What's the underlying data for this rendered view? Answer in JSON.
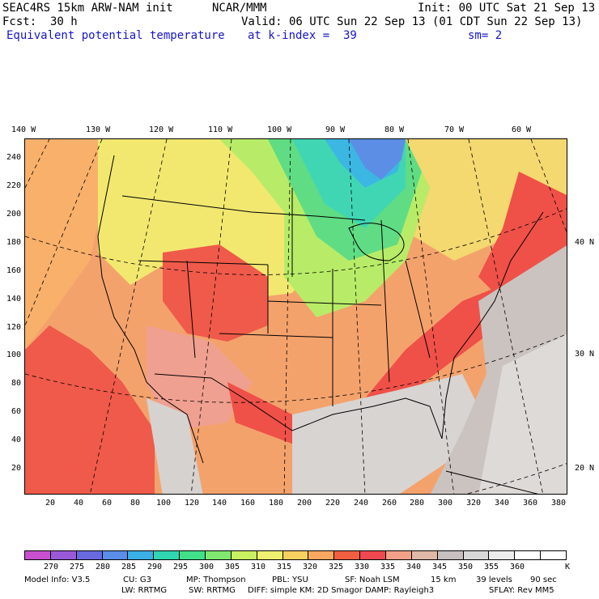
{
  "header": {
    "model": "SEAC4RS 15km ARW-NAM init",
    "org": "NCAR/MMM",
    "init": "Init: 00 UTC Sat 21 Sep 13",
    "fcst_label": "Fcst:",
    "fcst_value": "30 h",
    "valid": "Valid: 06 UTC Sun 22 Sep 13 (01 CDT Sun 22 Sep 13)",
    "field": "Equivalent potential temperature",
    "level": "at k-index =  39",
    "smooth": "sm= 2"
  },
  "axes": {
    "lon_labels": [
      "140 W",
      "130 W",
      "120 W",
      "110 W",
      "100 W",
      "90 W",
      "80 W",
      "70 W",
      "60 W"
    ],
    "lat_labels": [
      "40 N",
      "30 N",
      "20 N"
    ],
    "y_ticks": [
      "240",
      "220",
      "200",
      "180",
      "160",
      "140",
      "120",
      "100",
      "80",
      "60",
      "40",
      "20"
    ],
    "x_ticks": [
      "20",
      "40",
      "60",
      "80",
      "100",
      "120",
      "140",
      "160",
      "180",
      "200",
      "220",
      "240",
      "260",
      "280",
      "300",
      "320",
      "340",
      "360",
      "380"
    ]
  },
  "legend": {
    "labels": [
      "270",
      "275",
      "280",
      "285",
      "290",
      "295",
      "300",
      "305",
      "310",
      "315",
      "320",
      "325",
      "330",
      "335",
      "340",
      "345",
      "350",
      "355",
      "360",
      "K"
    ],
    "colors": [
      "#c850d0",
      "#9a5ad8",
      "#6a6ae0",
      "#5a8ee8",
      "#3ab0e6",
      "#30d4b0",
      "#40e08a",
      "#80e870",
      "#c8f060",
      "#f0f070",
      "#f8d060",
      "#f8a860",
      "#f06040",
      "#f04850",
      "#f4a088",
      "#e0b8a8",
      "#c8c0c0",
      "#d8d8d8",
      "#ececec",
      "#ffffff",
      "#ffffff"
    ]
  },
  "footer": {
    "line1": [
      "Model Info: V3.5",
      "CU: G3",
      "MP: Thompson",
      "PBL: YSU",
      "SF: Noah LSM",
      "15 km",
      "39 levels",
      "90 sec"
    ],
    "line2": [
      "LW: RRTMG",
      "SW: RRTMG",
      "DIFF: simple KM: 2D Smagor DAMP: Rayleigh3",
      "SFLAY: Rev MM5"
    ]
  }
}
